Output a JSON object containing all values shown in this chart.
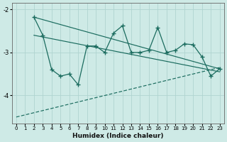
{
  "xlabel": "Humidex (Indice chaleur)",
  "ylabel": "",
  "bg_color": "#ceeae6",
  "grid_color": "#b0d4d0",
  "line_color": "#1a6b5e",
  "x_main": [
    2,
    3,
    4,
    5,
    6,
    7,
    8,
    9,
    10,
    11,
    12,
    13,
    14,
    15,
    16,
    17,
    18,
    19,
    20,
    21,
    22,
    23
  ],
  "y_main": [
    -2.18,
    -2.6,
    -3.4,
    -3.55,
    -3.5,
    -3.75,
    -2.85,
    -2.85,
    -3.0,
    -2.55,
    -2.38,
    -3.0,
    -3.0,
    -2.95,
    -2.42,
    -3.0,
    -2.95,
    -2.8,
    -2.82,
    -3.1,
    -3.55,
    -3.38
  ],
  "line1_x": [
    2,
    23
  ],
  "line1_y": [
    -2.18,
    -3.38
  ],
  "line2_x": [
    0,
    23
  ],
  "line2_y": [
    -4.5,
    -3.35
  ],
  "line3_x": [
    2,
    23
  ],
  "line3_y": [
    -2.6,
    -3.45
  ],
  "ylim": [
    -4.65,
    -1.85
  ],
  "xlim": [
    -0.5,
    23.5
  ],
  "yticks": [
    -4,
    -3,
    -2
  ],
  "xticks": [
    0,
    1,
    2,
    3,
    4,
    5,
    6,
    7,
    8,
    9,
    10,
    11,
    12,
    13,
    14,
    15,
    16,
    17,
    18,
    19,
    20,
    21,
    22,
    23
  ]
}
